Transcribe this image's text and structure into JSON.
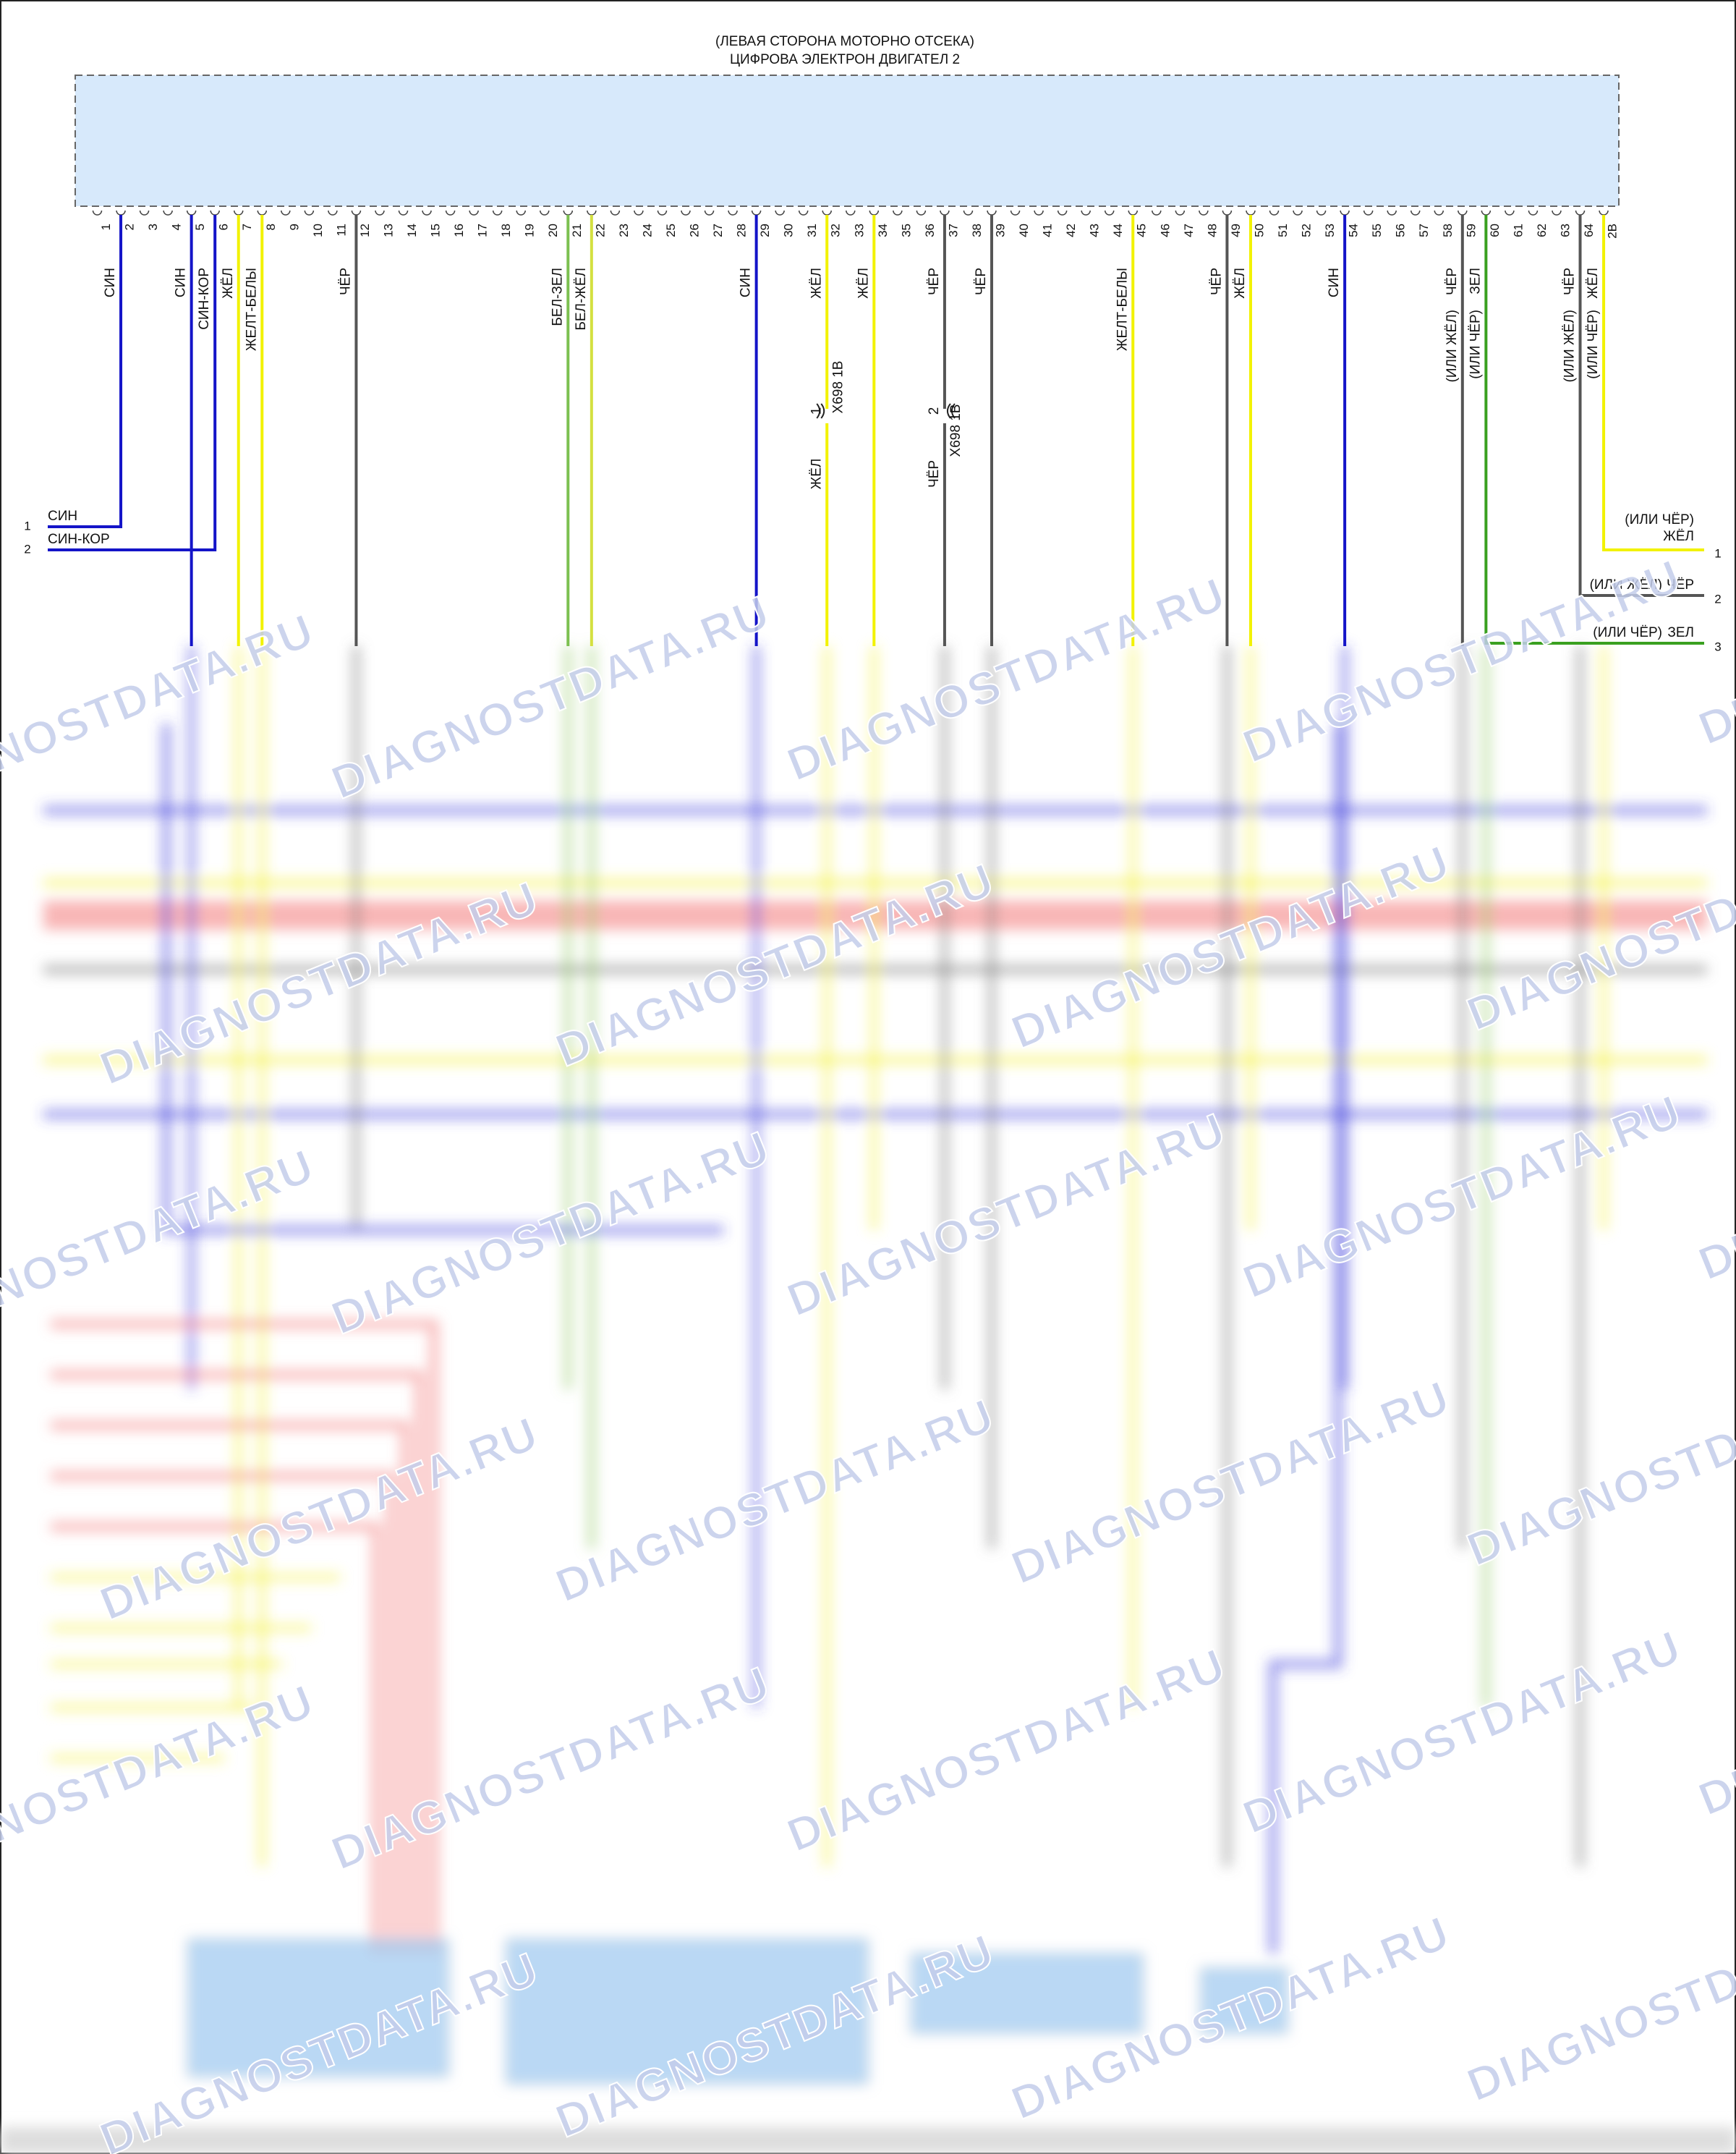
{
  "header": {
    "location": "(ЛЕВАЯ СТОРОНА МОТОРНО ОТСЕКА)",
    "component": "ЦИФРОВА ЭЛЕКТРОН ДВИГАТЕЛ 2"
  },
  "pins": [
    "1",
    "2",
    "3",
    "4",
    "5",
    "6",
    "7",
    "8",
    "9",
    "10",
    "11",
    "12",
    "13",
    "14",
    "15",
    "16",
    "17",
    "18",
    "19",
    "20",
    "21",
    "22",
    "23",
    "24",
    "25",
    "26",
    "27",
    "28",
    "29",
    "30",
    "31",
    "32",
    "33",
    "34",
    "35",
    "36",
    "37",
    "38",
    "39",
    "40",
    "41",
    "42",
    "43",
    "44",
    "45",
    "46",
    "47",
    "48",
    "49",
    "50",
    "51",
    "52",
    "53",
    "54",
    "55",
    "56",
    "57",
    "58",
    "59",
    "60",
    "61",
    "62",
    "63",
    "64",
    "2B"
  ],
  "wires": [
    {
      "pin": "2",
      "label": "СИН",
      "color": "#1414c8"
    },
    {
      "pin": "5",
      "label": "СИН",
      "color": "#1414c8"
    },
    {
      "pin": "6",
      "label": "СИН-КОР",
      "color": "#1414c8"
    },
    {
      "pin": "7",
      "label": "ЖЁЛ",
      "color": "#f2f200"
    },
    {
      "pin": "8",
      "label": "ЖЕЛТ-БЕЛЫ",
      "color": "#f2f200"
    },
    {
      "pin": "12",
      "label": "ЧЁР",
      "color": "#555555"
    },
    {
      "pin": "21",
      "label": "БЕЛ-ЗЕЛ",
      "color": "#7cc050"
    },
    {
      "pin": "22",
      "label": "БЕЛ-ЖЁЛ",
      "color": "#d4e040"
    },
    {
      "pin": "29",
      "label": "СИН",
      "color": "#1414c8"
    },
    {
      "pin": "32",
      "label": "ЖЁЛ",
      "color": "#f2f200"
    },
    {
      "pin": "34",
      "label": "ЖЁЛ",
      "color": "#f2f200"
    },
    {
      "pin": "37",
      "label": "ЧЁР",
      "color": "#555555"
    },
    {
      "pin": "39",
      "label": "ЧЁР",
      "color": "#555555"
    },
    {
      "pin": "45",
      "label": "ЖЕЛТ-БЕЛЫ",
      "color": "#f2f200"
    },
    {
      "pin": "49",
      "label": "ЧЁР",
      "color": "#555555"
    },
    {
      "pin": "50",
      "label": "ЖЁЛ",
      "color": "#f2f200"
    },
    {
      "pin": "54",
      "label": "СИН",
      "color": "#1414c8"
    },
    {
      "pin": "59",
      "label": "ЧЁР",
      "alt": "(ИЛИ ЖЁЛ)",
      "color": "#555555"
    },
    {
      "pin": "60",
      "label": "ЗЕЛ",
      "alt": "(ИЛИ ЧЁР)",
      "color": "#3aa020"
    },
    {
      "pin": "64",
      "label": "ЧЁР",
      "alt": "(ИЛИ ЖЁЛ)",
      "color": "#555555"
    },
    {
      "pin": "2B",
      "label": "ЖЁЛ",
      "alt": "(ИЛИ ЧЁР)",
      "color": "#f2f200"
    }
  ],
  "inline_connector": {
    "name": "X698 1B",
    "pins": [
      {
        "pin": "1",
        "label": "ЖЁЛ"
      },
      {
        "pin": "2",
        "label": "ЧЁР"
      }
    ]
  },
  "left_connector": [
    {
      "pin": "1",
      "label": "СИН"
    },
    {
      "pin": "2",
      "label": "СИН-КОР"
    }
  ],
  "right_connector": [
    {
      "pin": "1",
      "label": "ЖЁЛ",
      "alt": "(ИЛИ ЧЁР)"
    },
    {
      "pin": "2",
      "label": "ЧЁР",
      "alt": "(ИЛИ ЖЁЛ)"
    },
    {
      "pin": "3",
      "label": "ЗЕЛ",
      "alt": "(ИЛИ ЧЁР)"
    }
  ],
  "watermark": "DIAGNOSTDATA.RU"
}
